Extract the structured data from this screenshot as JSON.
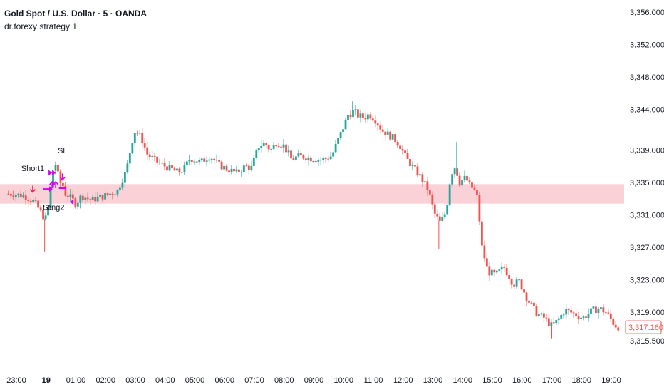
{
  "header": {
    "title": "Gold Spot / U.S. Dollar · 5 · OANDA",
    "indicator": "dr.forexy strategy 1"
  },
  "colors": {
    "up": "#26a69a",
    "down": "#ef5350",
    "zone": "#f7c6cc",
    "marker": "#d500f9",
    "short_arrow": "#e91e63",
    "price_label": "#ef5350",
    "axis_text": "#131722"
  },
  "chart_data": {
    "type": "candlestick",
    "symbol": "Gold Spot / U.S. Dollar",
    "interval": "5",
    "source": "OANDA",
    "indicator": "dr.forexy strategy 1",
    "grid": false,
    "y_axis": {
      "side": "right",
      "ylim": [
        3314.2,
        3357.3
      ],
      "ticks": [
        "3,356.000",
        "3,352.000",
        "3,348.000",
        "3,344.000",
        "3,339.000",
        "3,335.000",
        "3,331.000",
        "3,327.000",
        "3,323.000",
        "3,319.000",
        "3,315.500"
      ],
      "tick_values": [
        3356.0,
        3352.0,
        3348.0,
        3344.0,
        3339.0,
        3335.0,
        3331.0,
        3327.0,
        3323.0,
        3319.0,
        3315.5
      ]
    },
    "x_axis": {
      "labels": [
        "23:00",
        "19",
        "01:00",
        "02:00",
        "03:00",
        "04:00",
        "05:00",
        "06:00",
        "07:00",
        "08:00",
        "09:00",
        "10:00",
        "11:00",
        "12:00",
        "13:00",
        "14:00",
        "15:00",
        "16:00",
        "17:00",
        "18:00",
        "19:00"
      ],
      "bold_label": "19"
    },
    "last_price": "3,317.160",
    "last_price_value": 3317.16,
    "zone": {
      "low": 3332.4,
      "high": 3334.8,
      "color": "#f7c6cc"
    },
    "annotations": [
      {
        "text": "Short1",
        "time_h": -0.45,
        "price": 3336.4
      },
      {
        "text": "SL",
        "time_h": 0.55,
        "price": 3338.6
      },
      {
        "text": "Long2",
        "time_h": 0.25,
        "price": 3331.6
      },
      {
        "text": "SL",
        "time_h": 0.05,
        "price": 3331.6
      }
    ],
    "anchors": [
      [
        -1.1,
        3333.6
      ],
      [
        -0.7,
        3333.3
      ],
      [
        -0.4,
        3332.6
      ],
      [
        -0.15,
        3331.2
      ],
      [
        -0.03,
        3330.4
      ],
      [
        0.1,
        3332.2
      ],
      [
        0.2,
        3336.2
      ],
      [
        0.33,
        3337.3
      ],
      [
        0.45,
        3335.0
      ],
      [
        0.55,
        3334.8
      ],
      [
        0.65,
        3333.6
      ],
      [
        0.8,
        3333.2
      ],
      [
        1.0,
        3332.4
      ],
      [
        1.2,
        3333.4
      ],
      [
        1.5,
        3332.8
      ],
      [
        1.8,
        3333.2
      ],
      [
        2.0,
        3333.4
      ],
      [
        2.4,
        3334.0
      ],
      [
        2.7,
        3336.5
      ],
      [
        2.88,
        3340.0
      ],
      [
        3.0,
        3341.5
      ],
      [
        3.2,
        3340.5
      ],
      [
        3.4,
        3338.5
      ],
      [
        3.7,
        3337.6
      ],
      [
        4.0,
        3337.0
      ],
      [
        4.4,
        3336.3
      ],
      [
        4.6,
        3336.5
      ],
      [
        4.85,
        3338.0
      ],
      [
        5.2,
        3337.5
      ],
      [
        5.5,
        3338.3
      ],
      [
        5.8,
        3337.2
      ],
      [
        6.1,
        3336.6
      ],
      [
        6.4,
        3336.2
      ],
      [
        6.7,
        3337.0
      ],
      [
        6.9,
        3336.8
      ],
      [
        7.15,
        3339.5
      ],
      [
        7.35,
        3339.8
      ],
      [
        7.55,
        3339.0
      ],
      [
        7.75,
        3340.0
      ],
      [
        8.0,
        3339.5
      ],
      [
        8.25,
        3337.8
      ],
      [
        8.5,
        3338.3
      ],
      [
        8.9,
        3338.0
      ],
      [
        9.3,
        3337.8
      ],
      [
        9.6,
        3338.3
      ],
      [
        9.9,
        3341.0
      ],
      [
        10.15,
        3343.3
      ],
      [
        10.35,
        3343.8
      ],
      [
        10.5,
        3343.2
      ],
      [
        10.7,
        3343.0
      ],
      [
        10.85,
        3343.4
      ],
      [
        11.05,
        3342.8
      ],
      [
        11.3,
        3341.4
      ],
      [
        11.7,
        3340.4
      ],
      [
        11.9,
        3339.5
      ],
      [
        12.1,
        3338.0
      ],
      [
        12.35,
        3336.8
      ],
      [
        12.6,
        3335.6
      ],
      [
        12.85,
        3334.0
      ],
      [
        13.05,
        3331.2
      ],
      [
        13.25,
        3330.0
      ],
      [
        13.45,
        3331.5
      ],
      [
        13.6,
        3336.0
      ],
      [
        13.75,
        3337.0
      ],
      [
        13.9,
        3335.0
      ],
      [
        14.1,
        3335.6
      ],
      [
        14.25,
        3334.5
      ],
      [
        14.38,
        3334.2
      ],
      [
        14.5,
        3333.0
      ],
      [
        14.65,
        3327.0
      ],
      [
        14.85,
        3324.0
      ],
      [
        15.1,
        3323.6
      ],
      [
        15.4,
        3324.5
      ],
      [
        15.7,
        3322.5
      ],
      [
        15.9,
        3322.8
      ],
      [
        16.2,
        3320.5
      ],
      [
        16.5,
        3318.8
      ],
      [
        16.75,
        3318.3
      ],
      [
        17.0,
        3317.3
      ],
      [
        17.2,
        3318.0
      ],
      [
        17.45,
        3319.3
      ],
      [
        17.75,
        3318.8
      ],
      [
        18.05,
        3318.3
      ],
      [
        18.35,
        3319.2
      ],
      [
        18.6,
        3319.5
      ],
      [
        18.85,
        3318.9
      ],
      [
        19.1,
        3317.5
      ],
      [
        19.2,
        3317.2
      ]
    ]
  }
}
